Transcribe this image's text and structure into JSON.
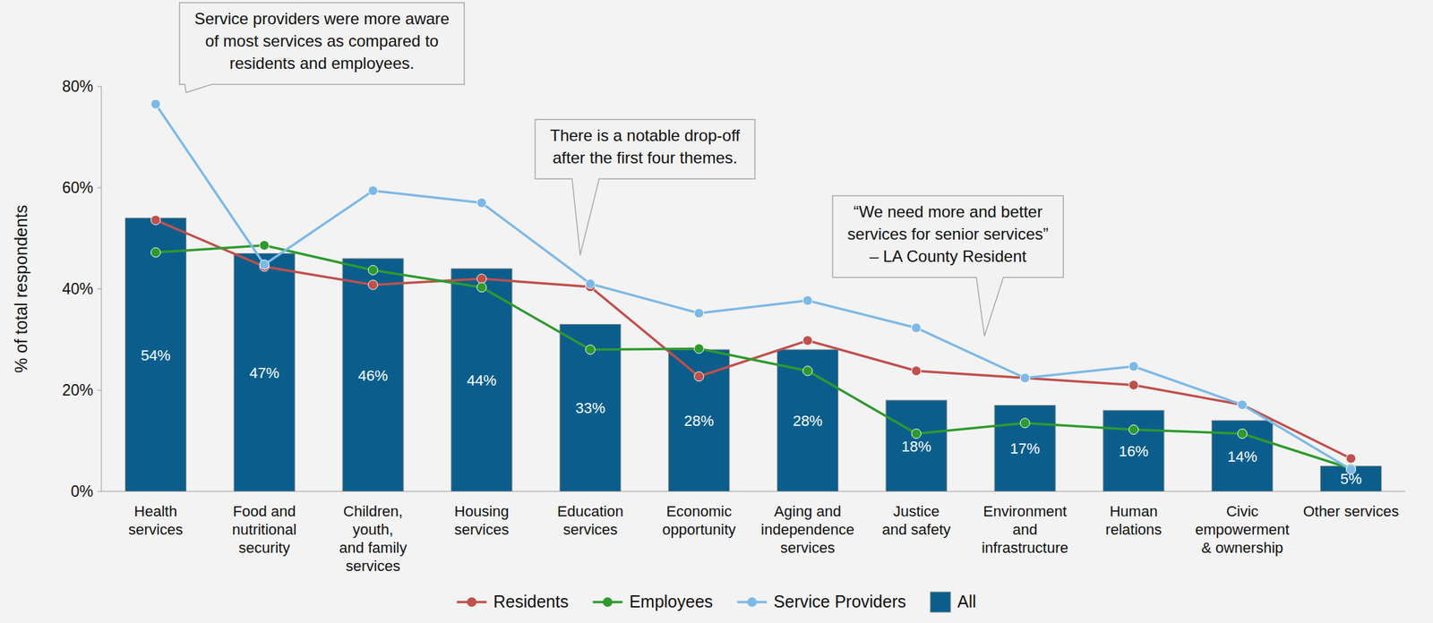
{
  "chart_data": {
    "type": "bar",
    "y_label": "% of total respondents",
    "categories": [
      "Health\nservices",
      "Food and\nnutritional\nsecurity",
      "Children,\nyouth,\nand family\nservices",
      "Housing\nservices",
      "Education\nservices",
      "Economic\nopportunity",
      "Aging and\nindependence\nservices",
      "Justice\nand safety",
      "Environment\nand\ninfrastructure",
      "Human\nrelations",
      "Civic\nempowerment\n& ownership",
      "Other services"
    ],
    "series": [
      {
        "name": "Residents",
        "type": "line",
        "color": "#c0504d",
        "marker": "circle",
        "line_style": "solid",
        "values": [
          53.6,
          44.4,
          40.8,
          42,
          40.4,
          22.7,
          29.8,
          23.8,
          22.4,
          21,
          17.1,
          6.5
        ]
      },
      {
        "name": "Employees",
        "type": "line",
        "color": "#2e9a2e",
        "marker": "circle",
        "line_style": "solid",
        "values": [
          47.2,
          48.6,
          43.7,
          40.3,
          28,
          28.2,
          23.8,
          11.4,
          13.5,
          12.2,
          11.4,
          4.5
        ]
      },
      {
        "name": "Service Providers",
        "type": "line",
        "color": "#7db9e6",
        "marker": "circle",
        "line_style": "solid",
        "values": [
          76.5,
          44.8,
          59.4,
          57,
          41,
          35.2,
          37.7,
          32.3,
          22.4,
          24.7,
          17.1,
          4.3
        ]
      },
      {
        "name": "All",
        "type": "bar",
        "color": "#0b5e8c",
        "values": [
          54,
          47,
          46,
          44,
          33,
          28,
          28,
          18,
          17,
          16,
          14,
          5
        ],
        "value_labels": [
          "54%",
          "47%",
          "46%",
          "44%",
          "33%",
          "28%",
          "28%",
          "18%",
          "17%",
          "16%",
          "14%",
          "5%"
        ]
      }
    ],
    "ylim": [
      0,
      80
    ],
    "yticks": [
      {
        "value": 0,
        "label": "0%"
      },
      {
        "value": 20,
        "label": "20%"
      },
      {
        "value": 40,
        "label": "40%"
      },
      {
        "value": 60,
        "label": "60%"
      },
      {
        "value": 80,
        "label": "80%"
      }
    ],
    "grid": false,
    "data_labels": true,
    "legend": "bottom",
    "annotations": [
      {
        "text": "Service providers were more aware\nof most services as compared to\nresidents and employees."
      },
      {
        "text": "There is a notable drop-off\nafter the first four themes."
      },
      {
        "text": "“We need more and better\nservices for senior services”\n– LA County Resident"
      }
    ]
  }
}
